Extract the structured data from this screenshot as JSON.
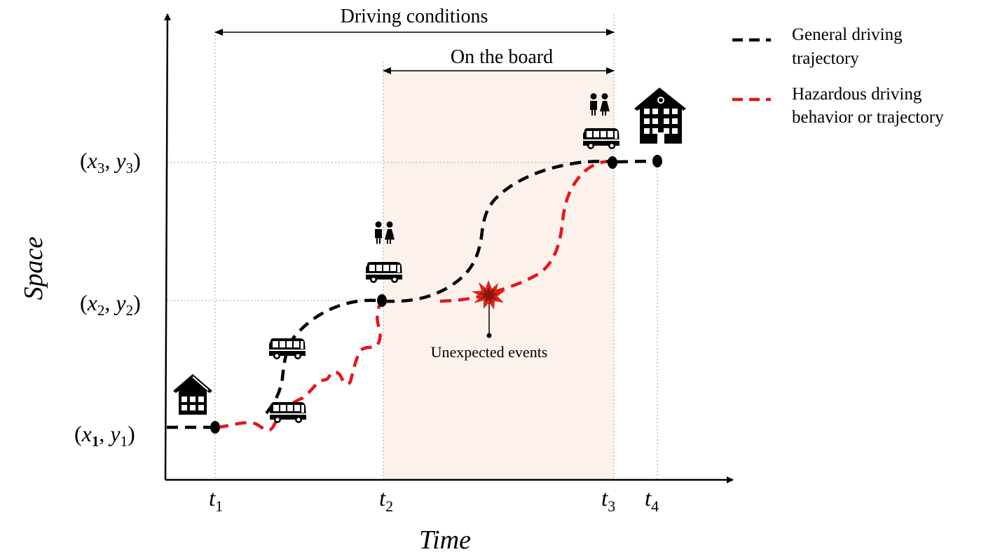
{
  "axes": {
    "x_label": "Time",
    "y_label": "Space"
  },
  "time_points": [
    {
      "name": "t",
      "sub": "1"
    },
    {
      "name": "t",
      "sub": "2"
    },
    {
      "name": "t",
      "sub": "3"
    },
    {
      "name": "t",
      "sub": "4"
    }
  ],
  "space_points": [
    {
      "x": "x",
      "xs": "1",
      "y": "y",
      "ys": "1"
    },
    {
      "x": "x",
      "xs": "2",
      "y": "y",
      "ys": "2"
    },
    {
      "x": "x",
      "xs": "3",
      "y": "y",
      "ys": "3"
    }
  ],
  "spans": {
    "driving_conditions": "Driving conditions",
    "on_the_board": "On the board"
  },
  "annotation": {
    "unexpected_events": "Unexpected events"
  },
  "legend": {
    "general": {
      "line1": "General driving",
      "line2": "trajectory",
      "color": "#000000"
    },
    "hazardous": {
      "line1": "Hazardous driving",
      "line2": "behavior or trajectory",
      "color": "#e8141c"
    }
  },
  "colors": {
    "general": "#000000",
    "hazardous": "#e8141c",
    "shade": "#fdf1ec",
    "gridline": "#b5b5b5",
    "explosion_outer": "#d8281a",
    "explosion_inner": "#8a1410"
  },
  "icons": [
    "house-icon",
    "bus-icon",
    "children-icon",
    "school-building-icon",
    "explosion-icon"
  ]
}
